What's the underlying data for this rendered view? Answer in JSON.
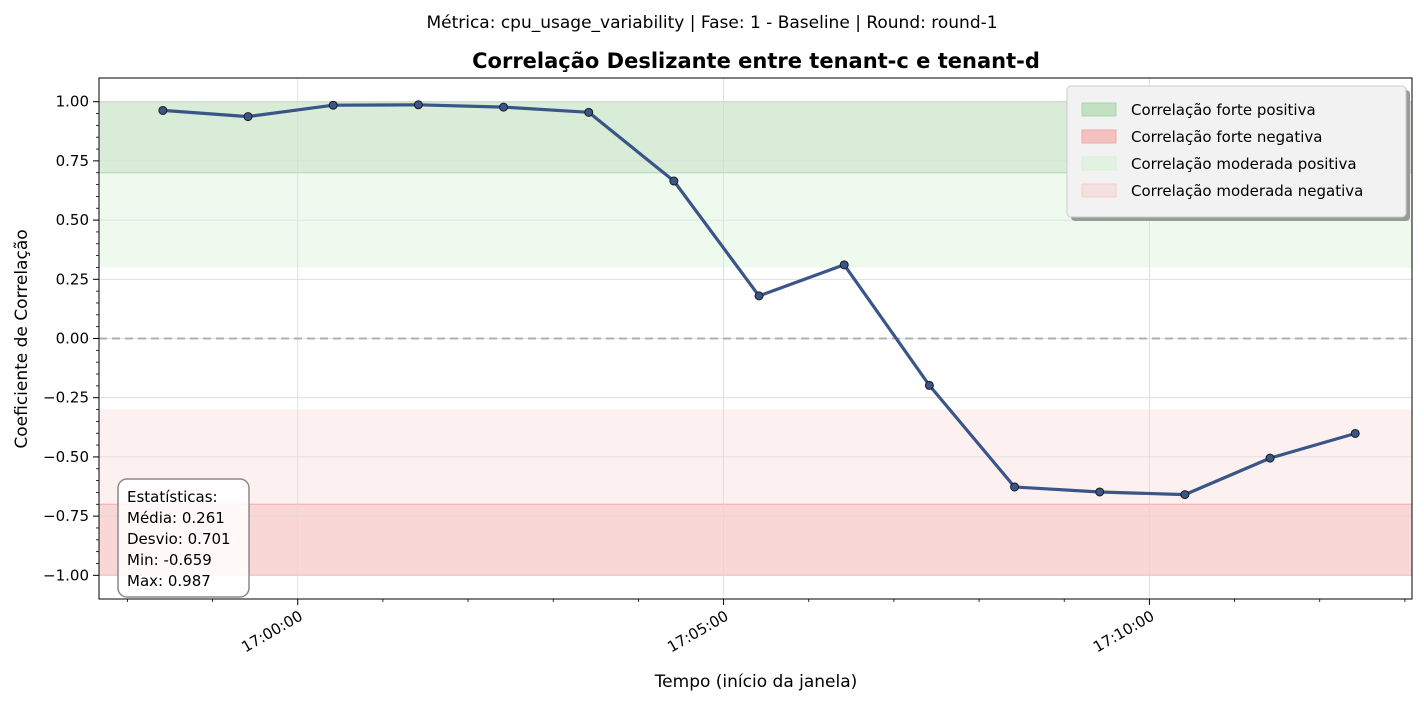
{
  "chart_data": {
    "type": "line",
    "suptitle": "Métrica: cpu_usage_variability | Fase: 1 - Baseline | Round: round-1",
    "title": "Correlação Deslizante entre tenant-c e tenant-d",
    "xlabel": "Tempo (início da janela)",
    "ylabel": "Coeficiente de Correlação",
    "ylim": [
      -1.1,
      1.1
    ],
    "xlim": [
      "16:57:40",
      "17:13:05"
    ],
    "yticks": [
      1.0,
      0.75,
      0.5,
      0.25,
      0.0,
      -0.25,
      -0.5,
      -0.75,
      -1.0
    ],
    "ytick_labels": [
      "1.00",
      "0.75",
      "0.50",
      "0.25",
      "0.00",
      "−0.25",
      "−0.50",
      "−0.75",
      "−1.00"
    ],
    "xticks": [
      "17:00:00",
      "17:05:00",
      "17:10:00"
    ],
    "grid": true,
    "line_color": "#3a5587",
    "series": [
      {
        "x": [
          "16:58:25",
          "16:59:25",
          "17:00:25",
          "17:01:25",
          "17:02:25",
          "17:03:25",
          "17:04:25",
          "17:05:25",
          "17:06:25",
          "17:07:25",
          "17:08:25",
          "17:09:25",
          "17:10:25",
          "17:11:25",
          "17:12:25"
        ],
        "values": [
          0.963,
          0.937,
          0.985,
          0.987,
          0.977,
          0.955,
          0.665,
          0.18,
          0.311,
          -0.198,
          -0.627,
          -0.648,
          -0.659,
          -0.505,
          -0.401
        ]
      }
    ],
    "zero_line": 0.0,
    "bands": [
      {
        "label": "Correlação forte positiva",
        "from": 0.7,
        "to": 1.0,
        "color": "#a8d5a8",
        "opacity": 0.45
      },
      {
        "label": "Correlação forte negativa",
        "from": -1.0,
        "to": -0.7,
        "color": "#f4a6a6",
        "opacity": 0.45
      },
      {
        "label": "Correlação moderada positiva",
        "from": 0.3,
        "to": 0.7,
        "color": "#d6f2d6",
        "opacity": 0.4
      },
      {
        "label": "Correlação moderada negativa",
        "from": -0.7,
        "to": -0.3,
        "color": "#f5d0cc",
        "opacity": 0.3
      }
    ],
    "legend_position": "top-right",
    "stats": {
      "title": "Estatísticas:",
      "lines": [
        "Média: 0.261",
        "Desvio: 0.701",
        "Min: -0.659",
        "Max: 0.987"
      ]
    }
  }
}
